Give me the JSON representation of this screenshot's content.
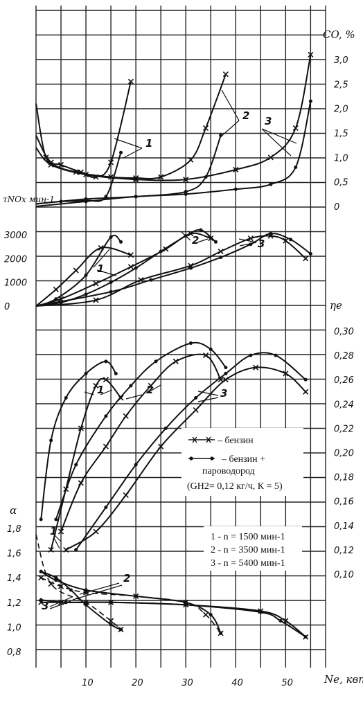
{
  "chart_data": [
    {
      "type": "line",
      "id": "co",
      "ylabel": "CO, %",
      "yticks": [
        "3,0",
        "2,5",
        "2,0",
        "1,5",
        "1,0",
        "0,5",
        "0"
      ],
      "ylim": [
        0,
        3.0
      ],
      "series": [
        {
          "key": "1",
          "mode": "petrol",
          "x": [
            0,
            2,
            5,
            9,
            12,
            15,
            19
          ],
          "y": [
            2.1,
            1.0,
            0.85,
            0.7,
            0.6,
            0.9,
            2.55
          ]
        },
        {
          "key": "1",
          "mode": "hydrogen",
          "x": [
            0,
            5,
            10,
            14,
            17
          ],
          "y": [
            0.05,
            0.1,
            0.12,
            0.2,
            1.1
          ]
        },
        {
          "key": "2",
          "mode": "petrol",
          "x": [
            0,
            3,
            8,
            15,
            20,
            25,
            31,
            34,
            38
          ],
          "y": [
            1.45,
            0.9,
            0.7,
            0.6,
            0.58,
            0.6,
            0.95,
            1.6,
            2.7
          ]
        },
        {
          "key": "2",
          "mode": "hydrogen",
          "x": [
            0,
            10,
            20,
            30,
            34,
            37
          ],
          "y": [
            0.05,
            0.15,
            0.2,
            0.3,
            0.6,
            1.45
          ]
        },
        {
          "key": "3",
          "mode": "petrol",
          "x": [
            0,
            3,
            10,
            20,
            30,
            40,
            47,
            52,
            55
          ],
          "y": [
            1.2,
            0.85,
            0.65,
            0.55,
            0.55,
            0.75,
            1.0,
            1.6,
            3.1
          ]
        },
        {
          "key": "3",
          "mode": "hydrogen",
          "x": [
            0,
            10,
            20,
            30,
            40,
            47,
            52,
            55
          ],
          "y": [
            0.0,
            0.1,
            0.2,
            0.25,
            0.35,
            0.45,
            0.8,
            2.15
          ]
        }
      ]
    },
    {
      "type": "line",
      "id": "nox",
      "ylabel": "τNOx мин-1",
      "yticks": [
        "3000",
        "2000",
        "1000",
        "0"
      ],
      "ylim": [
        0,
        3000
      ],
      "series": [
        {
          "key": "1",
          "mode": "petrol",
          "x": [
            0,
            4,
            8,
            13,
            19
          ],
          "y": [
            0,
            700,
            1500,
            2450,
            2150
          ]
        },
        {
          "key": "1",
          "mode": "hydrogen",
          "x": [
            0,
            4,
            10,
            15,
            17
          ],
          "y": [
            0,
            300,
            1300,
            2900,
            2700
          ]
        },
        {
          "key": "2",
          "mode": "petrol",
          "x": [
            0,
            5,
            12,
            19,
            26,
            31,
            35
          ],
          "y": [
            0,
            300,
            950,
            1650,
            2400,
            3050,
            2850
          ]
        },
        {
          "key": "2",
          "mode": "hydrogen",
          "x": [
            0,
            5,
            10,
            15,
            20,
            25,
            30,
            33,
            36
          ],
          "y": [
            0,
            150,
            500,
            1000,
            1600,
            2300,
            2950,
            3200,
            2700
          ]
        },
        {
          "key": "3",
          "mode": "petrol",
          "x": [
            0,
            12,
            21,
            31,
            37,
            43,
            47,
            50,
            54
          ],
          "y": [
            0,
            250,
            1100,
            1700,
            2300,
            2850,
            2950,
            2750,
            2000
          ]
        },
        {
          "key": "3",
          "mode": "hydrogen",
          "x": [
            0,
            15,
            23,
            31,
            37,
            43,
            47,
            51,
            55
          ],
          "y": [
            0,
            600,
            1100,
            1600,
            2050,
            2600,
            3050,
            2800,
            2200
          ]
        }
      ]
    },
    {
      "type": "line",
      "id": "eff",
      "ylabel": "ηе",
      "yticks": [
        "0,30",
        "0,28",
        "0,26",
        "0,24",
        "0,22",
        "0,20",
        "0,18",
        "0,16",
        "0,14",
        "0,12",
        "0,10"
      ],
      "ylim": [
        0.1,
        0.3
      ],
      "series": [
        {
          "key": "1",
          "mode": "petrol",
          "x": [
            3,
            6,
            9,
            12,
            14,
            17
          ],
          "y": [
            0.12,
            0.17,
            0.22,
            0.255,
            0.26,
            0.245
          ]
        },
        {
          "key": "1",
          "mode": "hydrogen",
          "x": [
            1,
            3,
            6,
            10,
            14,
            16
          ],
          "y": [
            0.145,
            0.21,
            0.245,
            0.265,
            0.275,
            0.265
          ]
        },
        {
          "key": "2",
          "mode": "petrol",
          "x": [
            5,
            9,
            14,
            18,
            23,
            28,
            34,
            37
          ],
          "y": [
            0.135,
            0.175,
            0.205,
            0.23,
            0.255,
            0.275,
            0.28,
            0.26
          ]
        },
        {
          "key": "2",
          "mode": "hydrogen",
          "x": [
            4,
            8,
            14,
            19,
            24,
            31,
            35,
            38
          ],
          "y": [
            0.145,
            0.19,
            0.23,
            0.255,
            0.275,
            0.29,
            0.285,
            0.27
          ]
        },
        {
          "key": "3",
          "mode": "petrol",
          "x": [
            6,
            12,
            18,
            25,
            32,
            38,
            44,
            50,
            54
          ],
          "y": [
            0.12,
            0.135,
            0.165,
            0.205,
            0.235,
            0.26,
            0.27,
            0.265,
            0.25
          ]
        },
        {
          "key": "3",
          "mode": "hydrogen",
          "x": [
            8,
            14,
            20,
            26,
            32,
            38,
            43,
            48,
            54
          ],
          "y": [
            0.12,
            0.155,
            0.19,
            0.22,
            0.245,
            0.265,
            0.28,
            0.28,
            0.26
          ]
        }
      ]
    },
    {
      "type": "line",
      "id": "alpha",
      "ylabel": "α",
      "yticks": [
        "1,8",
        "1,6",
        "1,4",
        "1,2",
        "1,0",
        "0,8"
      ],
      "ylim": [
        0.8,
        1.8
      ],
      "series": [
        {
          "key": "1",
          "mode": "petrol",
          "x": [
            0,
            3,
            10,
            15,
            17
          ],
          "y": [
            1.75,
            1.35,
            1.2,
            1.05,
            0.98
          ]
        },
        {
          "key": "1",
          "mode": "hydrogen",
          "x": [
            1,
            4,
            7,
            10,
            15,
            17
          ],
          "y": [
            1.45,
            1.4,
            1.3,
            1.18,
            1.02,
            0.98
          ]
        },
        {
          "key": "2",
          "mode": "petrol",
          "x": [
            1,
            5,
            10,
            20,
            30,
            34,
            37
          ],
          "y": [
            1.4,
            1.33,
            1.28,
            1.25,
            1.2,
            1.1,
            0.95
          ]
        },
        {
          "key": "2",
          "mode": "hydrogen",
          "x": [
            1,
            4,
            10,
            20,
            30,
            35,
            37
          ],
          "y": [
            1.45,
            1.38,
            1.3,
            1.25,
            1.2,
            1.1,
            0.95
          ]
        },
        {
          "key": "3",
          "mode": "petrol",
          "x": [
            1,
            5,
            15,
            30,
            45,
            50,
            54
          ],
          "y": [
            1.2,
            1.2,
            1.2,
            1.18,
            1.13,
            1.05,
            0.92
          ]
        },
        {
          "key": "3",
          "mode": "hydrogen",
          "x": [
            1,
            6,
            15,
            30,
            45,
            49,
            54
          ],
          "y": [
            1.22,
            1.2,
            1.2,
            1.18,
            1.12,
            1.05,
            0.92
          ]
        }
      ]
    }
  ],
  "x_axis": {
    "label": "Ne, квт",
    "ticks": [
      "10",
      "20",
      "30",
      "40",
      "50"
    ]
  },
  "legend": {
    "petrol": "– бензин",
    "hydrogen_line1": "– бензин +",
    "hydrogen_line2": "пароводород",
    "hydrogen_line3": "(GH2= 0,12 кг/ч, К = 5)",
    "speeds": [
      "1 - n = 1500 мин-1",
      "2 - n = 3500 мин-1",
      "3 - n = 5400 мин-1"
    ]
  },
  "curve_labels": [
    "1",
    "2",
    "3"
  ]
}
